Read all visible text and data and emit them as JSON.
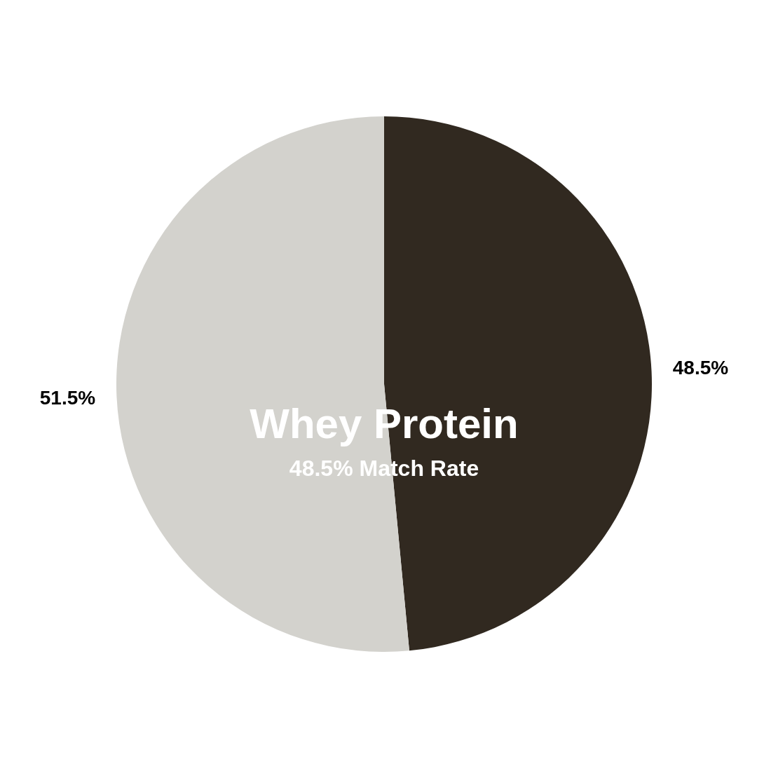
{
  "chart_data": {
    "type": "pie",
    "title": "Whey Protein",
    "subtitle": "48.5% Match Rate",
    "categories": [
      null,
      null
    ],
    "values": [
      48.5,
      51.5
    ],
    "colors": [
      "#312920",
      "#d3d2cd"
    ],
    "value_labels": [
      "48.5%",
      "51.5%"
    ],
    "legend": false
  }
}
